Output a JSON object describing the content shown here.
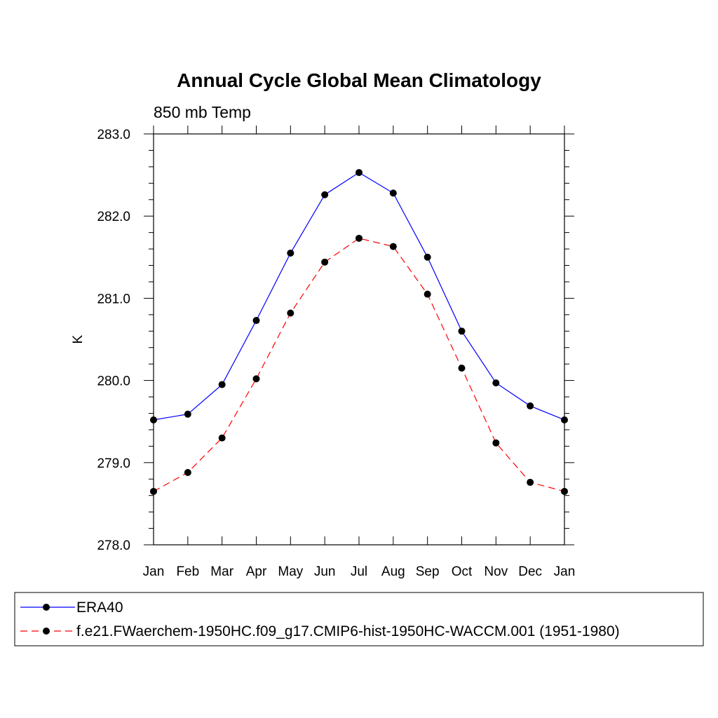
{
  "chart_data": {
    "type": "line",
    "title": "Annual Cycle Global Mean Climatology",
    "subtitle": "850 mb Temp",
    "xlabel": "",
    "ylabel": "K",
    "categories": [
      "Jan",
      "Feb",
      "Mar",
      "Apr",
      "May",
      "Jun",
      "Jul",
      "Aug",
      "Sep",
      "Oct",
      "Nov",
      "Dec",
      "Jan"
    ],
    "ylim": [
      278.0,
      283.0
    ],
    "ytick_labels": [
      "278.0",
      "279.0",
      "280.0",
      "281.0",
      "282.0",
      "283.0"
    ],
    "grid": false,
    "legend_position": "bottom",
    "series": [
      {
        "name": "ERA40",
        "color": "#0000ff",
        "line_style": "solid",
        "marker": "filled-circle",
        "values": [
          279.52,
          279.59,
          279.95,
          280.73,
          281.55,
          282.26,
          282.53,
          282.28,
          281.5,
          280.6,
          279.97,
          279.69,
          279.52
        ]
      },
      {
        "name": "f.e21.FWaerchem-1950HC.f09_g17.CMIP6-hist-1950HC-WACCM.001 (1951-1980)",
        "color": "#ff0000",
        "line_style": "dashed",
        "marker": "filled-circle",
        "values": [
          278.65,
          278.88,
          279.3,
          280.02,
          280.82,
          281.44,
          281.73,
          281.63,
          281.05,
          280.15,
          279.24,
          278.76,
          278.65
        ]
      }
    ]
  }
}
